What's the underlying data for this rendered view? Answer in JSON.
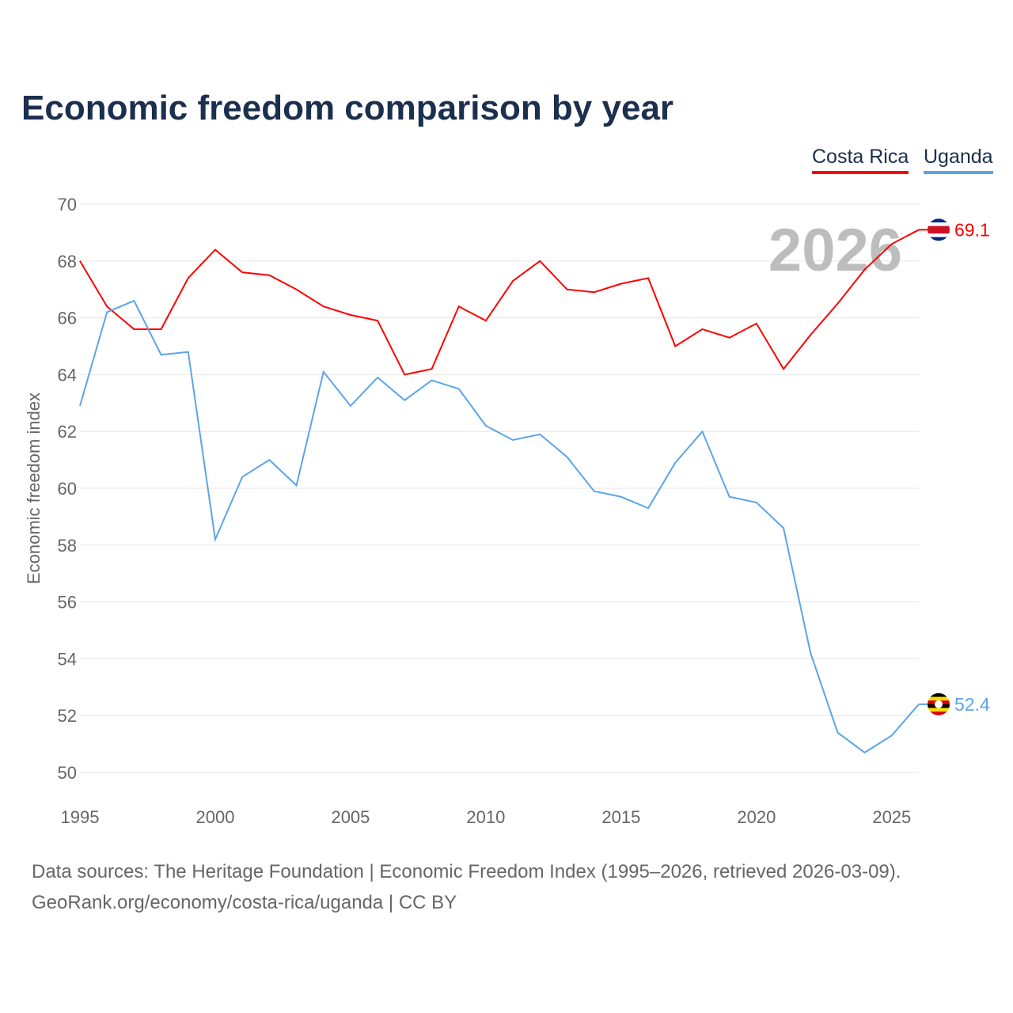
{
  "chart_data": {
    "type": "line",
    "title": "Economic freedom comparison by year",
    "xlabel": "",
    "ylabel": "Economic freedom index",
    "xlim": [
      1995,
      2026
    ],
    "ylim": [
      50,
      70
    ],
    "yticks": [
      "50",
      "52",
      "54",
      "56",
      "58",
      "60",
      "62",
      "64",
      "66",
      "68",
      "70"
    ],
    "xticks": [
      "1995",
      "2000",
      "2005",
      "2010",
      "2015",
      "2020",
      "2025"
    ],
    "grid": true,
    "legend_position": "top-right",
    "year_label": "2026",
    "x": [
      1995,
      1996,
      1997,
      1998,
      1999,
      2000,
      2001,
      2002,
      2003,
      2004,
      2005,
      2006,
      2007,
      2008,
      2009,
      2010,
      2011,
      2012,
      2013,
      2014,
      2015,
      2016,
      2017,
      2018,
      2019,
      2020,
      2021,
      2022,
      2023,
      2024,
      2025,
      2026
    ],
    "series": [
      {
        "name": "Costa Rica",
        "color": "#ff0000",
        "end_label": "69.1",
        "values": [
          68.0,
          66.4,
          65.6,
          65.6,
          67.4,
          68.4,
          67.6,
          67.5,
          67.0,
          66.4,
          66.1,
          65.9,
          64.0,
          64.2,
          66.4,
          65.9,
          67.3,
          68.0,
          67.0,
          66.9,
          67.2,
          67.4,
          65.0,
          65.6,
          65.3,
          65.8,
          64.2,
          65.4,
          66.5,
          67.7,
          68.6,
          69.1
        ]
      },
      {
        "name": "Uganda",
        "color": "#5aa5ea",
        "end_label": "52.4",
        "values": [
          62.9,
          66.2,
          66.6,
          64.7,
          64.8,
          58.2,
          60.4,
          61.0,
          60.1,
          64.1,
          62.9,
          63.9,
          63.1,
          63.8,
          63.5,
          62.2,
          61.7,
          61.9,
          61.1,
          59.9,
          59.7,
          59.3,
          60.9,
          62.0,
          59.7,
          59.5,
          58.6,
          54.2,
          51.4,
          50.7,
          51.3,
          52.4
        ]
      }
    ]
  },
  "footer": {
    "line1": "Data sources: The Heritage Foundation | Economic Freedom Index (1995–2026, retrieved 2026-03-09).",
    "line2": "GeoRank.org/economy/costa-rica/uganda | CC BY"
  }
}
